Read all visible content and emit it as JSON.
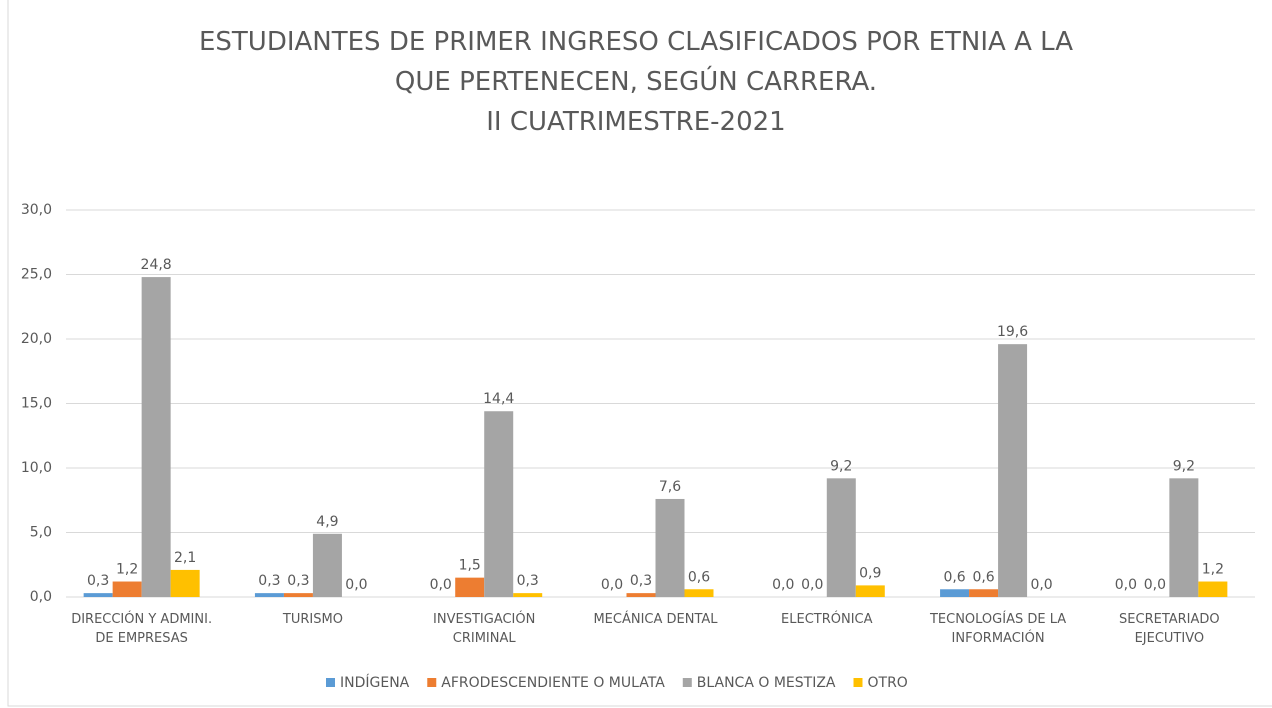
{
  "chart_data": {
    "type": "bar",
    "title": "ESTUDIANTES DE PRIMER INGRESO CLASIFICADOS POR ETNIA A LA\nQUE PERTENECEN, SEGÚN CARRERA.",
    "subtitle": "II CUATRIMESTRE-2021",
    "categories": [
      "DIRECCIÓN Y ADMINI.\nDE EMPRESAS",
      "TURISMO",
      "INVESTIGACIÓN\nCRIMINAL",
      "MECÁNICA DENTAL",
      "ELECTRÓNICA",
      "TECNOLOGÍAS DE LA\nINFORMACIÓN",
      "SECRETARIADO\nEJECUTIVO"
    ],
    "series": [
      {
        "name": "INDÍGENA",
        "color": "#5b9bd5",
        "values": [
          0.3,
          0.3,
          0,
          0,
          0,
          0.6,
          0
        ],
        "value_labels": [
          "0,3",
          "0,3",
          "0,0",
          "0,0",
          "0,0",
          "0,6",
          "0,0"
        ]
      },
      {
        "name": "AFRODESCENDIENTE O MULATA",
        "color": "#ed7d31",
        "values": [
          1.2,
          0.3,
          1.5,
          0.3,
          0,
          0.6,
          0
        ],
        "value_labels": [
          "1,2",
          "0,3",
          "1,5",
          "0,3",
          "0,0",
          "0,6",
          "0,0"
        ]
      },
      {
        "name": "BLANCA O MESTIZA",
        "color": "#a5a5a5",
        "values": [
          24.8,
          4.9,
          14.4,
          7.6,
          9.2,
          19.6,
          9.2
        ],
        "value_labels": [
          "24,8",
          "4,9",
          "14,4",
          "7,6",
          "9,2",
          "19,6",
          "9,2"
        ]
      },
      {
        "name": "OTRO",
        "color": "#ffc000",
        "values": [
          2.1,
          0,
          0.3,
          0.6,
          0.9,
          0,
          1.2
        ],
        "value_labels": [
          "2,1",
          "0,0",
          "0,3",
          "0,6",
          "0,9",
          "0,0",
          "1,2"
        ]
      }
    ],
    "ylim": [
      0,
      30
    ],
    "yticks": [
      {
        "value": 0,
        "label": "0,0"
      },
      {
        "value": 5,
        "label": "5,0"
      },
      {
        "value": 10,
        "label": "10,0"
      },
      {
        "value": 15,
        "label": "15,0"
      },
      {
        "value": 20,
        "label": "20,0"
      },
      {
        "value": 25,
        "label": "25,0"
      },
      {
        "value": 30,
        "label": "30,0"
      }
    ],
    "grid": true,
    "legend": "bottom"
  }
}
